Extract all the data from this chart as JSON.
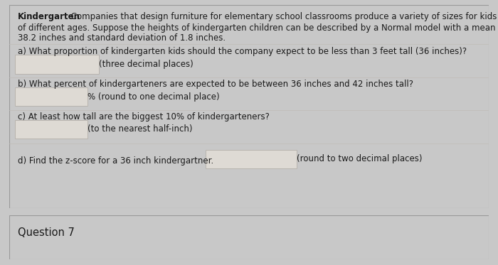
{
  "page_bg": "#c8c8c8",
  "main_box_bg": "#f0eeeb",
  "footer_box_bg": "#e8e6e2",
  "input_box_color": "#dedad4",
  "input_box_border": "#b8b4ae",
  "text_color": "#1a1a1a",
  "bold_word": "Kindergarten",
  "line1_rest": " Companies that design furniture for elementary school classrooms produce a variety of sizes for kids",
  "line2": "of different ages. Suppose the heights of kindergarten children can be described by a Normal model with a mean of",
  "line3": "38.2 inches and standard deviation of 1.8 inches.",
  "q_a": "a) What proportion of kindergarten kids should the company expect to be less than 3 feet tall (36 inches)?",
  "q_a_hint": "(three decimal places)",
  "q_b": "b) What percent of kindergarteners are expected to be between 36 inches and 42 inches tall?",
  "q_b_hint": "% (round to one decimal place)",
  "q_c": "c) At least how tall are the biggest 10% of kindergarteners?",
  "q_c_hint": "(to the nearest half-inch)",
  "q_d": "d) Find the z-score for a 36 inch kindergartner.",
  "q_d_hint": "(round to two decimal places)",
  "footer": "Question 7",
  "font_size": 8.5,
  "font_size_footer": 10.5
}
